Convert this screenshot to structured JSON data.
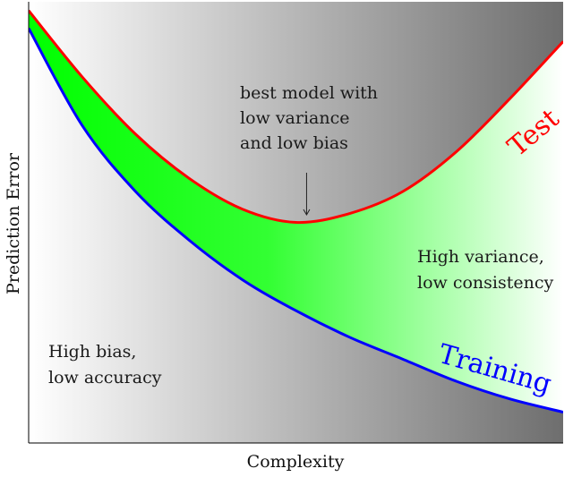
{
  "chart_data": {
    "type": "line",
    "title": "",
    "xlabel": "Complexity",
    "ylabel": "Prediction Error",
    "xlim": [
      0,
      1
    ],
    "ylim": [
      0,
      1
    ],
    "grid": false,
    "legend": "none",
    "x": [
      0,
      0.1,
      0.2,
      0.3,
      0.4,
      0.5,
      0.6,
      0.7,
      0.8,
      0.9,
      1.0
    ],
    "series": [
      {
        "name": "Test",
        "color": "#ff0000",
        "values": [
          0.98,
          0.83,
          0.7,
          0.6,
          0.53,
          0.5,
          0.52,
          0.57,
          0.66,
          0.78,
          0.91
        ]
      },
      {
        "name": "Training",
        "color": "#0000ff",
        "values": [
          0.94,
          0.72,
          0.57,
          0.46,
          0.37,
          0.3,
          0.24,
          0.19,
          0.14,
          0.1,
          0.07
        ]
      }
    ],
    "fill_between": {
      "from_color": "#00ff00",
      "to_color": "#ffffff"
    },
    "background_gradient": {
      "from_color": "#ffffff",
      "to_color": "#6e6e6e"
    },
    "annotations": {
      "best_model": [
        "best model with",
        "low variance",
        "and low bias"
      ],
      "high_variance": [
        "High variance,",
        "low consistency"
      ],
      "high_bias": [
        "High bias,",
        "low accuracy"
      ]
    },
    "arrow_x": 0.52
  }
}
